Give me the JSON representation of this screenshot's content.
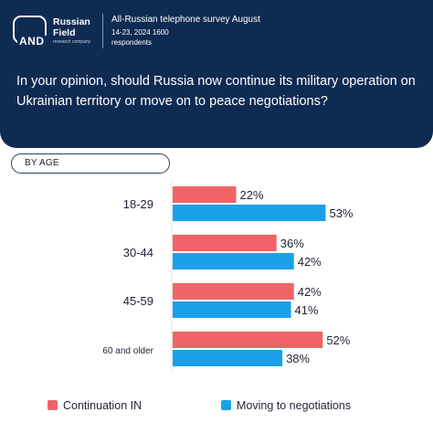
{
  "header": {
    "logo_mark": "AND",
    "brand_name": "Russian Field",
    "brand_tagline": "research company",
    "survey_line1": "All-Russian telephone survey August",
    "survey_line2": "14-23, 2024 1600",
    "survey_line3": "respondents",
    "question": "In your opinion, should Russia now continue its military operation on Ukrainian territory or move on to peace negotiations?",
    "background_color": "#0e2b52"
  },
  "group_label": "BY AGE",
  "chart_data": {
    "type": "bar",
    "orientation": "horizontal",
    "categories": [
      "18-29",
      "30-44",
      "45-59",
      "60 and older"
    ],
    "series": [
      {
        "name": "Continuation IN",
        "color": "#f06467",
        "values": [
          22,
          36,
          42,
          52
        ]
      },
      {
        "name": "Moving to negotiations",
        "color": "#1ba1ea",
        "values": [
          53,
          42,
          41,
          38
        ]
      }
    ],
    "value_suffix": "%",
    "xlim": [
      0,
      100
    ],
    "grid": false,
    "legend_position": "bottom"
  }
}
